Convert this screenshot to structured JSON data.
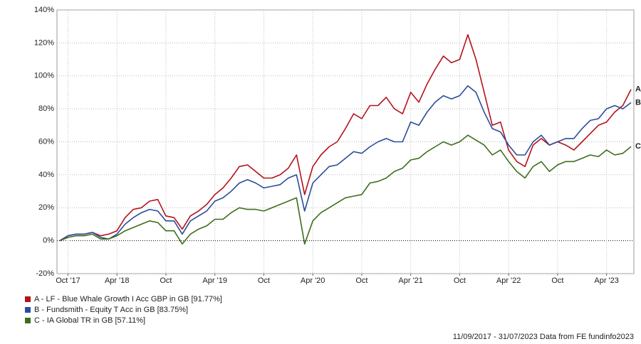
{
  "chart_data": {
    "type": "line",
    "categories": [
      null,
      "Oct '17",
      null,
      null,
      null,
      null,
      null,
      "Apr '18",
      null,
      null,
      null,
      null,
      null,
      "Oct",
      null,
      null,
      null,
      null,
      null,
      "Apr '19",
      null,
      null,
      null,
      null,
      null,
      "Oct",
      null,
      null,
      null,
      null,
      null,
      "Apr '20",
      null,
      null,
      null,
      null,
      null,
      "Oct",
      null,
      null,
      null,
      null,
      null,
      "Apr '21",
      null,
      null,
      null,
      null,
      null,
      "Oct",
      null,
      null,
      null,
      null,
      null,
      "Apr '22",
      null,
      null,
      null,
      null,
      null,
      "Oct",
      null,
      null,
      null,
      null,
      null,
      "Apr '23",
      null,
      null,
      null
    ],
    "series": [
      {
        "name": "A - LF - Blue Whale Growth I Acc GBP in GB [91.77%]",
        "end_label": "A",
        "color": "#b5121b",
        "values": [
          0,
          3,
          4,
          4,
          5,
          3,
          4,
          6,
          14,
          19,
          20,
          24,
          25,
          15,
          14,
          7,
          15,
          18,
          22,
          28,
          32,
          38,
          45,
          46,
          42,
          38,
          38,
          40,
          44,
          52,
          28,
          45,
          52,
          57,
          60,
          68,
          77,
          74,
          82,
          82,
          87,
          80,
          77,
          90,
          84,
          95,
          104,
          112,
          108,
          110,
          125,
          110,
          90,
          70,
          72,
          55,
          48,
          45,
          58,
          62,
          58,
          60,
          58,
          55,
          60,
          65,
          70,
          72,
          78,
          82,
          91.77
        ]
      },
      {
        "name": "B - Fundsmith - Equity T Acc in GB [83.75%]",
        "end_label": "B",
        "color": "#2a4d9b",
        "values": [
          0,
          3,
          4,
          4,
          5,
          2,
          1,
          4,
          10,
          14,
          17,
          19,
          18,
          12,
          12,
          4,
          12,
          15,
          18,
          24,
          26,
          30,
          35,
          37,
          35,
          32,
          33,
          34,
          38,
          40,
          18,
          35,
          40,
          45,
          46,
          50,
          54,
          53,
          57,
          60,
          62,
          60,
          60,
          72,
          70,
          78,
          84,
          88,
          86,
          88,
          94,
          90,
          78,
          68,
          66,
          58,
          52,
          52,
          60,
          64,
          58,
          60,
          62,
          62,
          68,
          73,
          74,
          80,
          82,
          80,
          83.75
        ]
      },
      {
        "name": "C - IA Global TR in GB [57.11%]",
        "end_label": "C",
        "color": "#3f6e1a",
        "values": [
          0,
          2,
          3,
          3,
          4,
          1,
          1,
          3,
          6,
          8,
          10,
          12,
          11,
          6,
          6,
          -2,
          4,
          7,
          9,
          13,
          13,
          17,
          20,
          19,
          19,
          18,
          20,
          22,
          24,
          26,
          -2,
          12,
          17,
          20,
          23,
          26,
          27,
          28,
          35,
          36,
          38,
          42,
          44,
          49,
          50,
          54,
          57,
          60,
          58,
          60,
          64,
          61,
          58,
          52,
          55,
          48,
          42,
          38,
          45,
          48,
          42,
          46,
          48,
          48,
          50,
          52,
          51,
          55,
          52,
          53,
          57.11
        ]
      }
    ],
    "ylim": [
      -20,
      140
    ],
    "yticks": [
      {
        "value": -20,
        "label": "-20%"
      },
      {
        "value": 0,
        "label": "0%"
      },
      {
        "value": 20,
        "label": "20%"
      },
      {
        "value": 40,
        "label": "40%"
      },
      {
        "value": 60,
        "label": "60%"
      },
      {
        "value": 80,
        "label": "80%"
      },
      {
        "value": 100,
        "label": "100%"
      },
      {
        "value": 120,
        "label": "120%"
      },
      {
        "value": 140,
        "label": "140%"
      }
    ],
    "grid": true,
    "footer": "11/09/2017 - 31/07/2023 Data from FE fundinfo2023"
  }
}
